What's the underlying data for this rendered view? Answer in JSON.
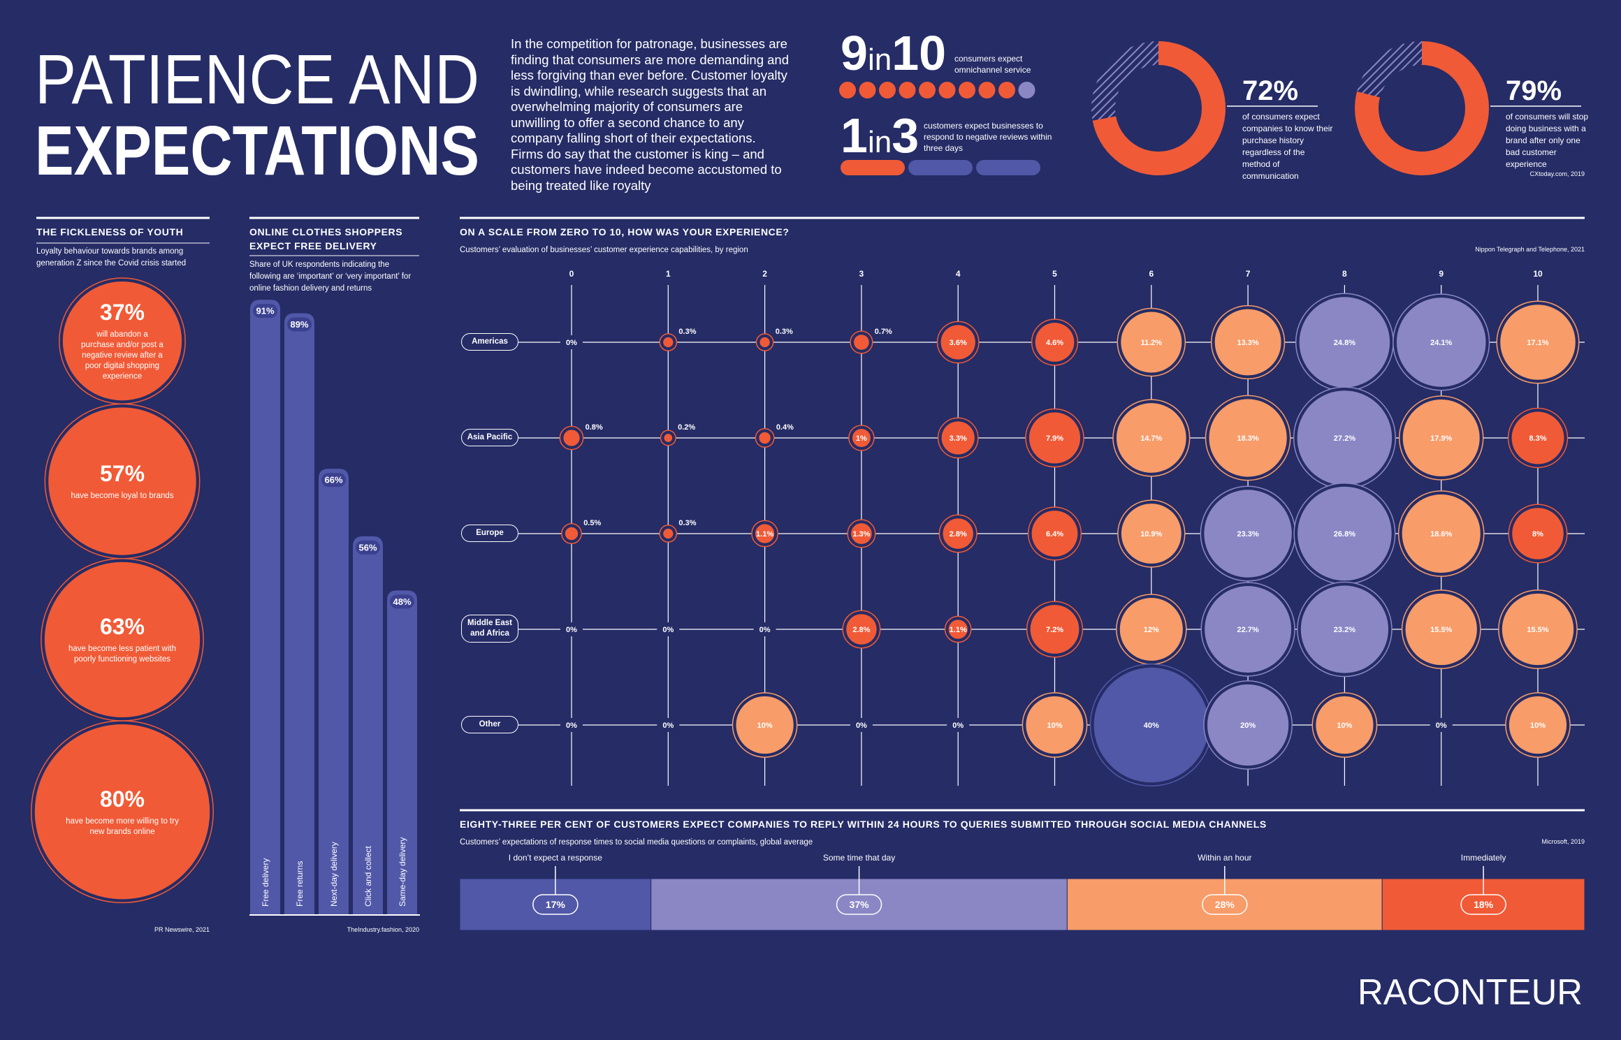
{
  "header": {
    "title_lines": [
      "PATIENCE AND",
      "EXPECTATIONS"
    ],
    "intro": "In the competition for patronage, businesses are finding that consumers are more demanding and less forgiving than ever before. Customer loyalty is dwindling, while research suggests that an overwhelming majority of consumers are unwilling to offer a second chance to any company falling short of their expectations. Firms do say that the customer is king – and customers have indeed become accustomed to being treated like royalty"
  },
  "stats": [
    {
      "numerator": 9,
      "joiner": "in",
      "denominator": 10,
      "text": "consumers expect omnichannel service",
      "colors": [
        "#f15a36",
        "#8b87c5"
      ]
    },
    {
      "numerator": 1,
      "joiner": "in",
      "denominator": 3,
      "text": "customers expect businesses to respond to negative reviews within three days",
      "colors": [
        "#f15a36",
        "#5158a8"
      ]
    }
  ],
  "chart_data": [
    {
      "type": "donut",
      "value": 72,
      "value_label": "72%",
      "color": "#f15a36",
      "text": "of consumers expect companies to know their purchase history regardless of the method of communication"
    },
    {
      "type": "donut",
      "value": 79,
      "value_label": "79%",
      "color": "#f15a36",
      "text": "of consumers will stop doing business with a brand after only one bad customer experience",
      "source": "CXtoday.com, 2019"
    },
    {
      "type": "bubble",
      "title": "THE FICKLENESS OF YOUTH",
      "subtitle": "Loyalty behaviour towards brands among generation Z since the Covid crisis started",
      "values": [
        37,
        57,
        63,
        80
      ],
      "value_labels": [
        "37%",
        "57%",
        "63%",
        "80%"
      ],
      "color": "#f15a36",
      "descriptions": [
        "will abandon a purchase and/or post a negative review after a poor digital shopping experience",
        "have become loyal to brands",
        "have become less patient with poorly functioning websites",
        "have become more willing to try new brands online"
      ],
      "source": "PR Newswire, 2021"
    },
    {
      "type": "bar",
      "title": "ONLINE CLOTHES SHOPPERS EXPECT FREE DELIVERY",
      "subtitle": "Share of UK respondents indicating the following are ‘important’ or ‘very important’ for online fashion delivery and returns",
      "categories": [
        "Free delivery",
        "Free returns",
        "Next-day delivery",
        "Click and collect",
        "Same-day delivery"
      ],
      "values": [
        91,
        89,
        66,
        56,
        48
      ],
      "value_labels": [
        "91%",
        "89%",
        "66%",
        "56%",
        "48%"
      ],
      "color": "#5158a8",
      "source": "TheIndustry.fashion, 2020"
    },
    {
      "type": "bubble_grid",
      "title": "ON A SCALE FROM ZERO TO 10, HOW WAS YOUR EXPERIENCE?",
      "subtitle": "Customers’ evaluation of businesses’ customer experience capabilities, by region",
      "source": "Nippon Telegraph and Telephone, 2021",
      "x": [
        0,
        1,
        2,
        3,
        4,
        5,
        6,
        7,
        8,
        9,
        10
      ],
      "xlim": [
        0,
        10
      ],
      "xticks": [
        0,
        1,
        2,
        3,
        4,
        5,
        6,
        7,
        8,
        9,
        10
      ],
      "series": [
        {
          "name": "Americas",
          "values": [
            0,
            0.3,
            0.3,
            0.7,
            3.6,
            4.6,
            11.2,
            13.3,
            24.8,
            24.1,
            17.1
          ],
          "value_labels": [
            "0%",
            "0.3%",
            "0.3%",
            "0.7%",
            "3.6%",
            "4.6%",
            "11.2%",
            "13.3%",
            "24.8%",
            "24.1%",
            "17.1%"
          ],
          "colors": [
            "#f15a36",
            "#f15a36",
            "#f15a36",
            "#f15a36",
            "#f15a36",
            "#f15a36",
            "#f89c69",
            "#f89c69",
            "#8b87c5",
            "#8b87c5",
            "#f89c69"
          ]
        },
        {
          "name": "Asia Pacific",
          "values": [
            0.8,
            0.2,
            0.4,
            1,
            3.3,
            7.9,
            14.7,
            18.3,
            27.2,
            17.9,
            8.3
          ],
          "value_labels": [
            "0.8%",
            "0.2%",
            "0.4%",
            "1%",
            "3.3%",
            "7.9%",
            "14.7%",
            "18.3%",
            "27.2%",
            "17.9%",
            "8.3%"
          ],
          "colors": [
            "#f15a36",
            "#f15a36",
            "#f15a36",
            "#f15a36",
            "#f15a36",
            "#f15a36",
            "#f89c69",
            "#f89c69",
            "#8b87c5",
            "#f89c69",
            "#f15a36"
          ]
        },
        {
          "name": "Europe",
          "values": [
            0.5,
            0.3,
            1.1,
            1.3,
            2.8,
            6.4,
            10.9,
            23.3,
            26.8,
            18.6,
            8
          ],
          "value_labels": [
            "0.5%",
            "0.3%",
            "1.1%",
            "1.3%",
            "2.8%",
            "6.4%",
            "10.9%",
            "23.3%",
            "26.8%",
            "18.6%",
            "8%"
          ],
          "colors": [
            "#f15a36",
            "#f15a36",
            "#f15a36",
            "#f15a36",
            "#f15a36",
            "#f15a36",
            "#f89c69",
            "#8b87c5",
            "#8b87c5",
            "#f89c69",
            "#f15a36"
          ]
        },
        {
          "name": "Middle East and Africa",
          "values": [
            0,
            0,
            0,
            2.8,
            1.1,
            7.2,
            12,
            22.7,
            23.2,
            15.5,
            15.5
          ],
          "value_labels": [
            "0%",
            "0%",
            "0%",
            "2.8%",
            "1.1%",
            "7.2%",
            "12%",
            "22.7%",
            "23.2%",
            "15.5%",
            "15.5%"
          ],
          "colors": [
            "#f15a36",
            "#f15a36",
            "#f15a36",
            "#f15a36",
            "#f15a36",
            "#f15a36",
            "#f89c69",
            "#8b87c5",
            "#8b87c5",
            "#f89c69",
            "#f89c69"
          ]
        },
        {
          "name": "Other",
          "values": [
            0,
            0,
            10,
            0,
            0,
            10,
            40,
            20,
            10,
            0,
            10
          ],
          "value_labels": [
            "0%",
            "0%",
            "10%",
            "0%",
            "0%",
            "10%",
            "40%",
            "20%",
            "10%",
            "0%",
            "10%"
          ],
          "colors": [
            "#f15a36",
            "#f15a36",
            "#f89c69",
            "#f15a36",
            "#f15a36",
            "#f89c69",
            "#5158a8",
            "#8b87c5",
            "#f89c69",
            "#f15a36",
            "#f89c69"
          ]
        }
      ]
    },
    {
      "type": "stacked_bar",
      "title": "EIGHTY-THREE PER CENT OF CUSTOMERS EXPECT COMPANIES TO REPLY WITHIN 24 HOURS TO QUERIES SUBMITTED THROUGH SOCIAL MEDIA CHANNELS",
      "subtitle": "Customers’ expectations of response times to social media questions or complaints, global average",
      "source": "Microsoft, 2019",
      "categories": [
        "I don’t expect a response",
        "Some time that day",
        "Within an hour",
        "Immediately"
      ],
      "values": [
        17,
        37,
        28,
        18
      ],
      "value_labels": [
        "17%",
        "37%",
        "28%",
        "18%"
      ],
      "colors": [
        "#5158a8",
        "#8b87c5",
        "#f89c69",
        "#f15a36"
      ]
    }
  ],
  "footer": {
    "logo": "RACONTEUR"
  }
}
